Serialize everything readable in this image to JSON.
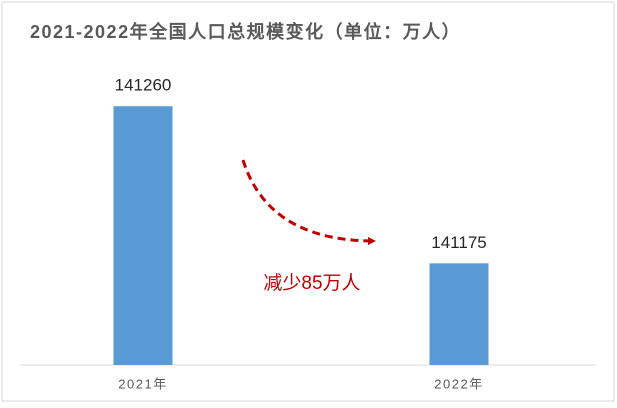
{
  "chart_data": {
    "type": "bar",
    "title": "2021-2022年全国人口总规模变化（单位：万人）",
    "categories": [
      "2021年",
      "2022年"
    ],
    "values": [
      141260,
      141175
    ],
    "color": "#5b9bd5",
    "ylim": [
      141120,
      141285
    ],
    "annotation": "减少85万人",
    "annotation_color": "#c00000"
  }
}
